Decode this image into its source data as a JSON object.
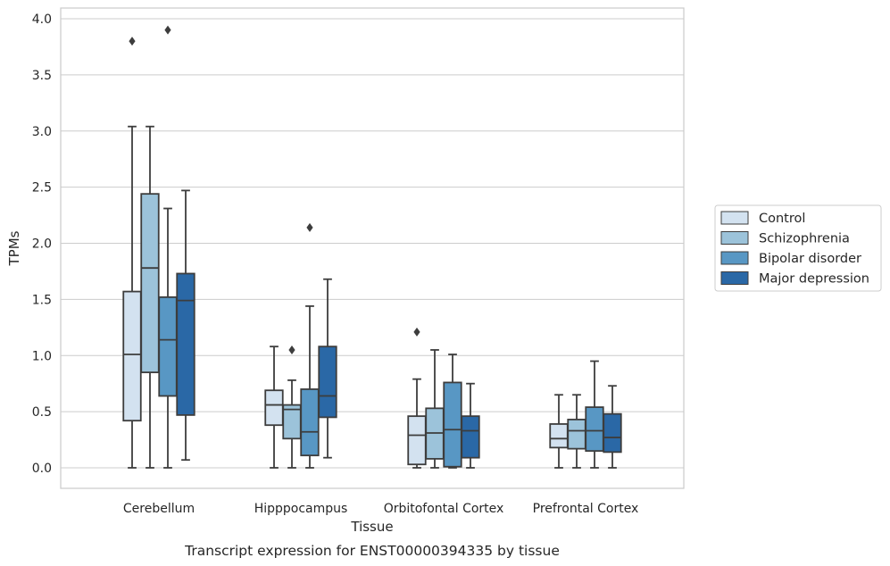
{
  "chart_data": {
    "type": "box",
    "caption": "Transcript expression for ENST00000394335 by tissue",
    "xlabel": "Tissue",
    "ylabel": "TPMs",
    "ylim": [
      -0.19,
      4.1
    ],
    "yticks": [
      "0.0",
      "0.5",
      "1.0",
      "1.5",
      "2.0",
      "2.5",
      "3.0",
      "3.5",
      "4.0"
    ],
    "grid": "horizontal",
    "legend_position": "right",
    "categories": [
      "Cerebellum",
      "Hipppocampus",
      "Orbitofontal Cortex",
      "Prefrontal Cortex"
    ],
    "series": [
      {
        "name": "Control",
        "color": "#d3e2f0",
        "boxes": [
          {
            "whisker_low": 0.0,
            "q1": 0.42,
            "median": 1.01,
            "q3": 1.57,
            "whisker_high": 3.04,
            "outliers": [
              3.8
            ]
          },
          {
            "whisker_low": 0.0,
            "q1": 0.38,
            "median": 0.56,
            "q3": 0.69,
            "whisker_high": 1.08,
            "outliers": []
          },
          {
            "whisker_low": 0.0,
            "q1": 0.03,
            "median": 0.29,
            "q3": 0.46,
            "whisker_high": 0.79,
            "outliers": [
              1.21
            ]
          },
          {
            "whisker_low": 0.0,
            "q1": 0.18,
            "median": 0.26,
            "q3": 0.39,
            "whisker_high": 0.65,
            "outliers": []
          }
        ]
      },
      {
        "name": "Schizophrenia",
        "color": "#9cc3da",
        "boxes": [
          {
            "whisker_low": 0.0,
            "q1": 0.85,
            "median": 1.78,
            "q3": 2.44,
            "whisker_high": 3.04,
            "outliers": []
          },
          {
            "whisker_low": 0.0,
            "q1": 0.26,
            "median": 0.52,
            "q3": 0.56,
            "whisker_high": 0.78,
            "outliers": [
              1.05
            ]
          },
          {
            "whisker_low": 0.0,
            "q1": 0.08,
            "median": 0.31,
            "q3": 0.53,
            "whisker_high": 1.05,
            "outliers": []
          },
          {
            "whisker_low": 0.0,
            "q1": 0.17,
            "median": 0.33,
            "q3": 0.43,
            "whisker_high": 0.65,
            "outliers": []
          }
        ]
      },
      {
        "name": "Bipolar disorder",
        "color": "#5897c4",
        "boxes": [
          {
            "whisker_low": 0.0,
            "q1": 0.64,
            "median": 1.14,
            "q3": 1.52,
            "whisker_high": 2.31,
            "outliers": [
              3.9
            ]
          },
          {
            "whisker_low": 0.0,
            "q1": 0.11,
            "median": 0.32,
            "q3": 0.7,
            "whisker_high": 1.44,
            "outliers": [
              2.14
            ]
          },
          {
            "whisker_low": 0.0,
            "q1": 0.01,
            "median": 0.34,
            "q3": 0.76,
            "whisker_high": 1.01,
            "outliers": []
          },
          {
            "whisker_low": 0.0,
            "q1": 0.15,
            "median": 0.33,
            "q3": 0.54,
            "whisker_high": 0.95,
            "outliers": []
          }
        ]
      },
      {
        "name": "Major depression",
        "color": "#2a68a6",
        "boxes": [
          {
            "whisker_low": 0.07,
            "q1": 0.47,
            "median": 1.49,
            "q3": 1.73,
            "whisker_high": 2.47,
            "outliers": []
          },
          {
            "whisker_low": 0.09,
            "q1": 0.45,
            "median": 0.64,
            "q3": 1.08,
            "whisker_high": 1.68,
            "outliers": []
          },
          {
            "whisker_low": 0.0,
            "q1": 0.09,
            "median": 0.33,
            "q3": 0.46,
            "whisker_high": 0.75,
            "outliers": []
          },
          {
            "whisker_low": 0.0,
            "q1": 0.14,
            "median": 0.27,
            "q3": 0.48,
            "whisker_high": 0.73,
            "outliers": []
          }
        ]
      }
    ]
  }
}
